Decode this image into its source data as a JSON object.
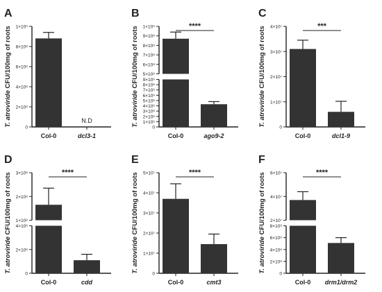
{
  "ylabel_italic": "T. atroviride",
  "ylabel_rest": " CFU/100mg of roots",
  "chart_data": [
    {
      "panel": "A",
      "type": "bar",
      "categories": [
        "Col-0",
        "dcl3-1"
      ],
      "values": [
        880000000.0,
        0
      ],
      "error": [
        60000000.0,
        0
      ],
      "ylim": [
        0,
        1000000000.0
      ],
      "yticks": [
        "0",
        "2×10⁸",
        "4×10⁸",
        "6×10⁸",
        "8×10⁸",
        "1×10⁹"
      ],
      "annotation": "N.D",
      "significance": ""
    },
    {
      "panel": "B",
      "type": "bar",
      "broken_axis": true,
      "categories": [
        "Col-0",
        "ago9-2"
      ],
      "values": [
        870000000.0,
        4300000.0
      ],
      "error": [
        70000000.0,
        500000.0
      ],
      "ylim_lower": [
        0,
        9000000.0
      ],
      "ylim_upper": [
        500000000.0,
        1000000000.0
      ],
      "yticks_lower": [
        "0",
        "1×10⁶",
        "2×10⁶",
        "3×10⁶",
        "4×10⁶",
        "5×10⁶",
        "6×10⁶",
        "7×10⁶",
        "8×10⁶",
        "9×10⁶"
      ],
      "yticks_upper": [
        "5×10⁸",
        "6×10⁸",
        "7×10⁸",
        "8×10⁸",
        "9×10⁸",
        "1×10⁹"
      ],
      "significance": "****"
    },
    {
      "panel": "C",
      "type": "bar",
      "categories": [
        "Col-0",
        "dcl1-9"
      ],
      "values": [
        31000000.0,
        6000000.0
      ],
      "error": [
        3500000.0,
        4200000.0
      ],
      "ylim": [
        0,
        40000000.0
      ],
      "yticks": [
        "0",
        "1×10⁷",
        "2×10⁷",
        "3×10⁷",
        "4×10⁷"
      ],
      "significance": "***"
    },
    {
      "panel": "D",
      "type": "bar",
      "broken_axis": true,
      "categories": [
        "Col-0",
        "cdd"
      ],
      "values": [
        165000000.0,
        1100000.0
      ],
      "error": [
        70000000.0,
        500000.0
      ],
      "ylim_lower": [
        0,
        4000000.0
      ],
      "ylim_upper": [
        100000000.0,
        300000000.0
      ],
      "yticks_lower": [
        "0",
        "2×10⁶",
        "4×10⁶"
      ],
      "yticks_upper": [
        "1×10⁸",
        "2×10⁸",
        "3×10⁸"
      ],
      "significance": "****"
    },
    {
      "panel": "E",
      "type": "bar",
      "categories": [
        "Col-0",
        "cmt3"
      ],
      "values": [
        37000000.0,
        14500000.0
      ],
      "error": [
        7500000.0,
        5000000.0
      ],
      "ylim": [
        0,
        50000000.0
      ],
      "yticks": [
        "0",
        "1×10⁷",
        "2×10⁷",
        "3×10⁷",
        "4×10⁷",
        "5×10⁷"
      ],
      "significance": "****"
    },
    {
      "panel": "F",
      "type": "bar",
      "broken_axis": true,
      "categories": [
        "Col-0",
        "drm1/drm2"
      ],
      "values": [
        37000000.0,
        5100000.0
      ],
      "error": [
        7000000.0,
        900000.0
      ],
      "ylim_lower": [
        0,
        8000000.0
      ],
      "ylim_upper": [
        20000000.0,
        60000000.0
      ],
      "yticks_lower": [
        "0",
        "2×10⁶",
        "4×10⁶",
        "6×10⁶",
        "8×10⁶"
      ],
      "yticks_upper": [
        "2×10⁷",
        "4×10⁷",
        "6×10⁷"
      ],
      "significance": "****"
    }
  ]
}
